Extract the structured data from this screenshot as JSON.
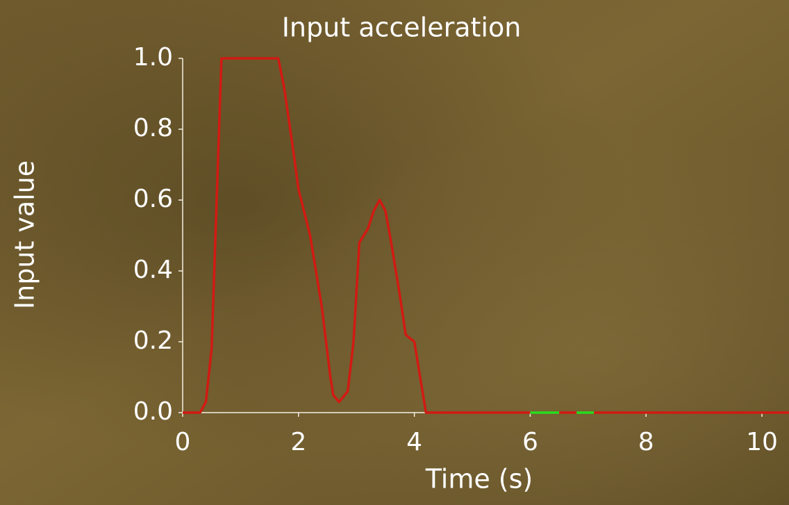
{
  "chart_data": {
    "type": "line",
    "title": "Input acceleration",
    "x_label": "Time (s)",
    "y_label": "Input value",
    "x": [
      0,
      0.3,
      0.4,
      0.5,
      0.67,
      1.65,
      1.75,
      1.9,
      2.0,
      2.2,
      2.4,
      2.55,
      2.6,
      2.7,
      2.85,
      2.95,
      3.05,
      3.2,
      3.3,
      3.4,
      3.5,
      3.6,
      3.75,
      3.85,
      4.0,
      4.1,
      4.2,
      6.0,
      6.5,
      6.65,
      6.8,
      7.1,
      10.5
    ],
    "series": [
      {
        "color": "#d21a12",
        "values": [
          0,
          0,
          0.03,
          0.18,
          1.0,
          1.0,
          0.92,
          0.75,
          0.63,
          0.5,
          0.3,
          0.1,
          0.05,
          0.03,
          0.06,
          0.2,
          0.48,
          0.52,
          0.57,
          0.6,
          0.57,
          0.48,
          0.33,
          0.22,
          0.2,
          0.1,
          0,
          0,
          0,
          0,
          0,
          0,
          0
        ]
      },
      {
        "color": "#22e022",
        "values": [
          null,
          null,
          null,
          null,
          null,
          null,
          null,
          null,
          null,
          null,
          null,
          null,
          null,
          null,
          null,
          null,
          null,
          null,
          null,
          null,
          null,
          null,
          null,
          null,
          null,
          null,
          null,
          0,
          0,
          null,
          0,
          0,
          null
        ]
      }
    ],
    "xlim": [
      0,
      10.5
    ],
    "ylim": [
      0,
      1.0
    ],
    "xticks": [
      0,
      2,
      4,
      6,
      8,
      10
    ],
    "yticks": [
      {
        "value": 0,
        "label": "0.0"
      },
      0.2,
      0.4,
      0.6,
      0.8,
      {
        "value": 1,
        "label": "1.0"
      }
    ]
  }
}
